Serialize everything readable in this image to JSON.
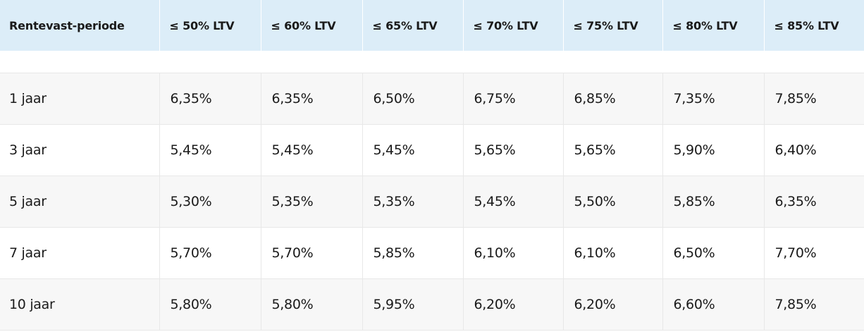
{
  "table": {
    "headers": [
      "Rentevast-periode",
      "≤ 50% LTV",
      "≤ 60% LTV",
      "≤ 65% LTV",
      "≤ 70% LTV",
      "≤ 75% LTV",
      "≤ 80% LTV",
      "≤ 85% LTV"
    ],
    "rows": [
      [
        "1 jaar",
        "6,35%",
        "6,35%",
        "6,50%",
        "6,75%",
        "6,85%",
        "7,35%",
        "7,85%"
      ],
      [
        "3 jaar",
        "5,45%",
        "5,45%",
        "5,45%",
        "5,65%",
        "5,65%",
        "5,90%",
        "6,40%"
      ],
      [
        "5 jaar",
        "5,30%",
        "5,35%",
        "5,35%",
        "5,45%",
        "5,50%",
        "5,85%",
        "6,35%"
      ],
      [
        "7 jaar",
        "5,70%",
        "5,70%",
        "5,85%",
        "6,10%",
        "6,10%",
        "6,50%",
        "7,70%"
      ],
      [
        "10 jaar",
        "5,80%",
        "5,80%",
        "5,95%",
        "6,20%",
        "6,20%",
        "6,60%",
        "7,85%"
      ]
    ]
  },
  "colors": {
    "header_bg": "#dcedf8",
    "row_alt_bg": "#f7f7f7",
    "border": "#e8e8e8"
  }
}
